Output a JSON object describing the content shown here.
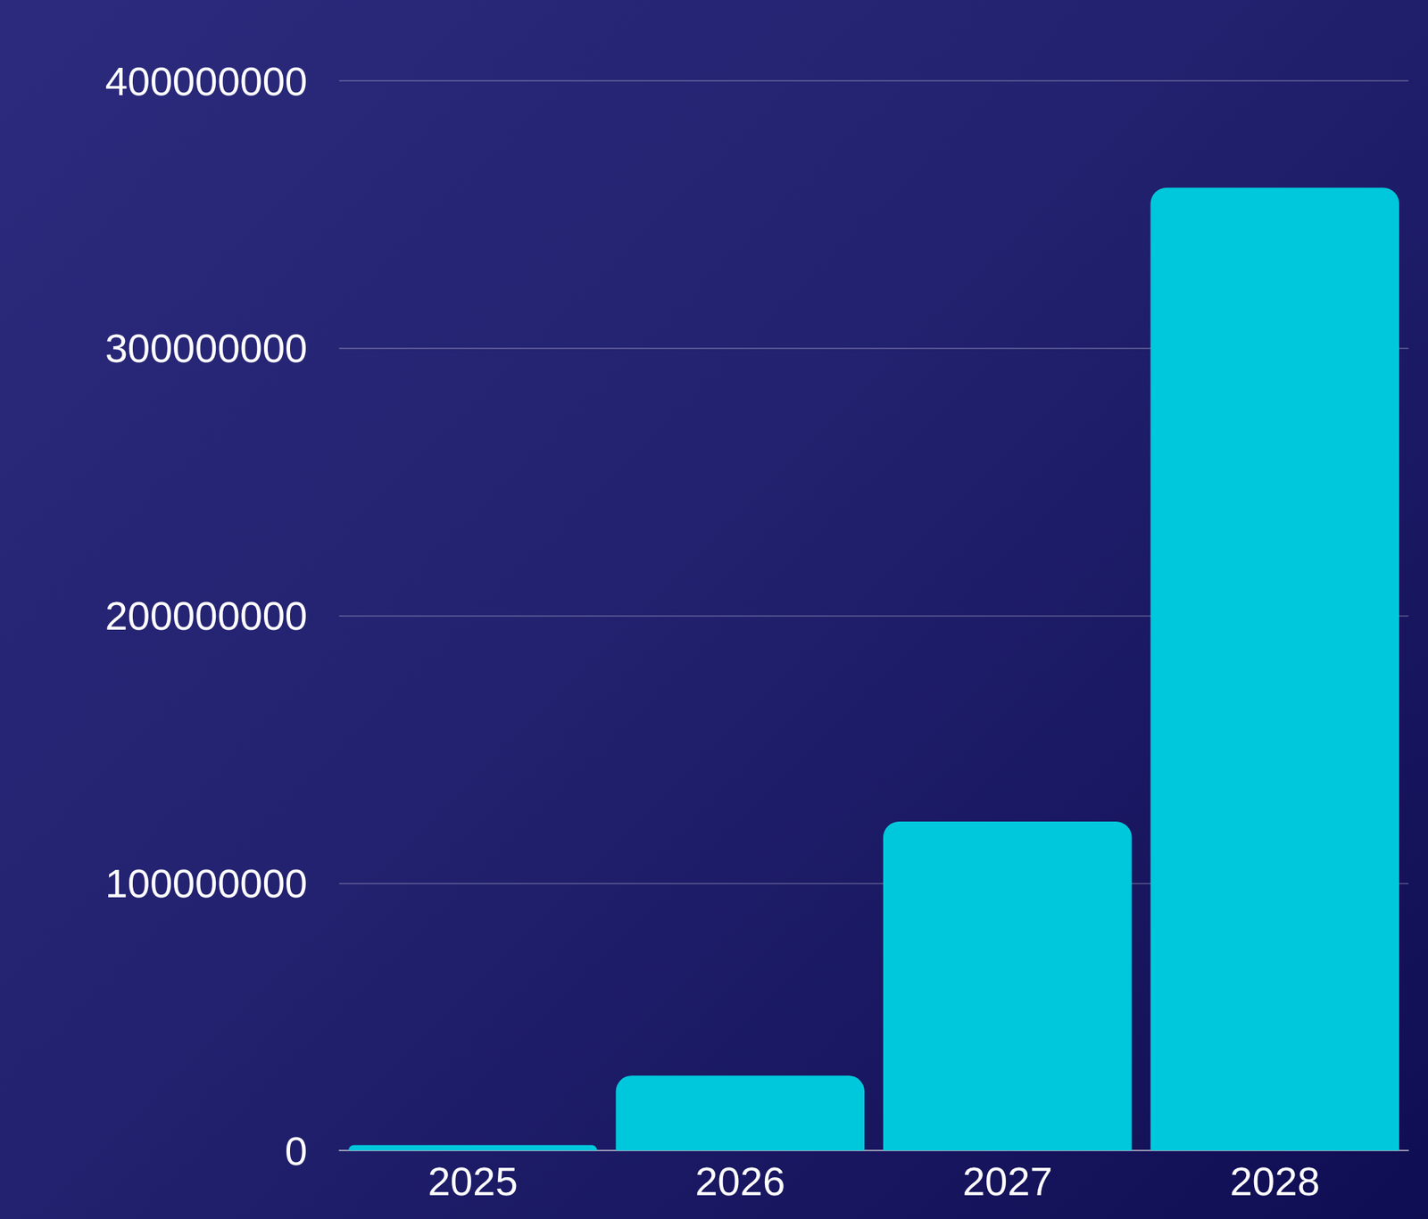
{
  "chart_data": {
    "type": "bar",
    "categories": [
      "2025",
      "2026",
      "2027",
      "2028"
    ],
    "values": [
      2000000,
      28000000,
      123000000,
      360000000
    ],
    "color": "#00c8dc",
    "ylim": [
      0,
      400000000
    ],
    "yticks": [
      0,
      100000000,
      200000000,
      300000000,
      400000000
    ],
    "grid": true
  }
}
